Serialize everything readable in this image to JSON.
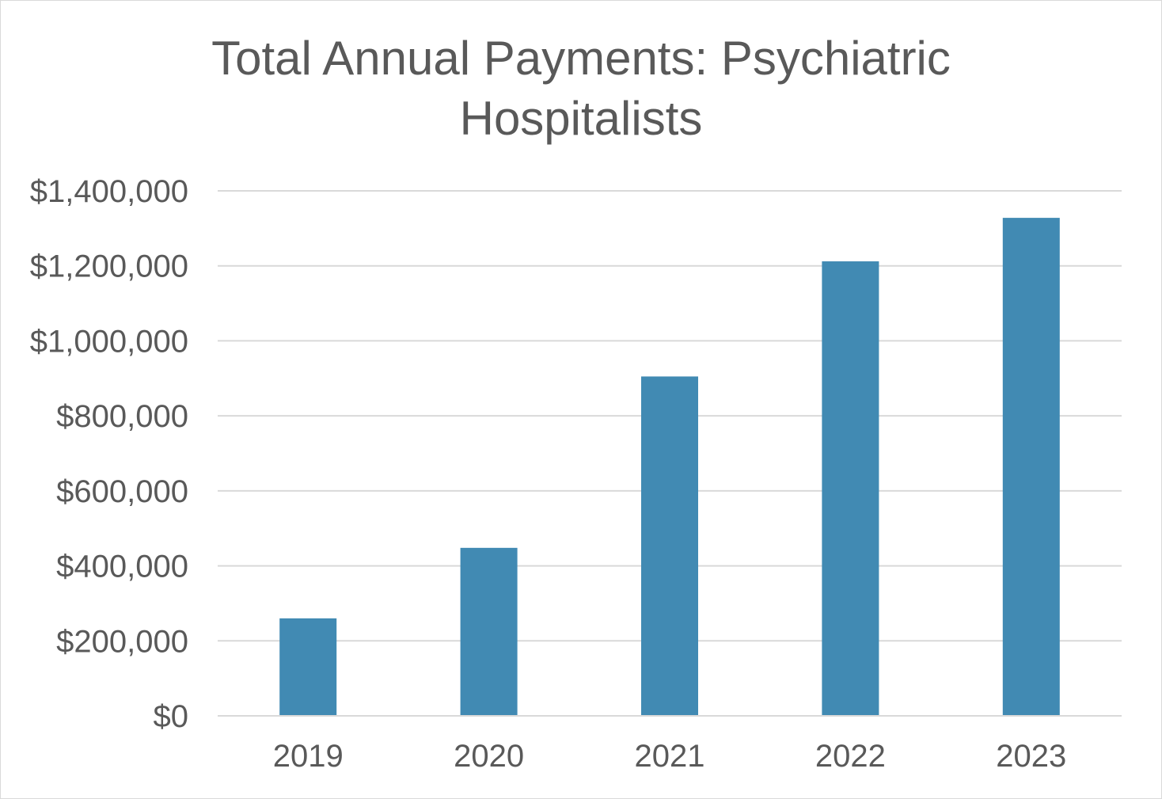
{
  "chart_data": {
    "type": "bar",
    "title_lines": [
      "Total Annual Payments: Psychiatric",
      "Hospitalists"
    ],
    "categories": [
      "2019",
      "2020",
      "2021",
      "2022",
      "2023"
    ],
    "values": [
      260000,
      448000,
      905000,
      1212000,
      1328000
    ],
    "y_ticks": [
      0,
      200000,
      400000,
      600000,
      800000,
      1000000,
      1200000,
      1400000
    ],
    "y_tick_labels": [
      "$0",
      "$200,000",
      "$400,000",
      "$600,000",
      "$800,000",
      "$1,000,000",
      "$1,200,000",
      "$1,400,000"
    ],
    "ylim": [
      0,
      1400000
    ],
    "grid": true,
    "legend": "none",
    "xlabel": "",
    "ylabel": "",
    "colors": {
      "bar": "#418AB3",
      "grid": "#d9d9d9",
      "text": "#595959"
    }
  }
}
